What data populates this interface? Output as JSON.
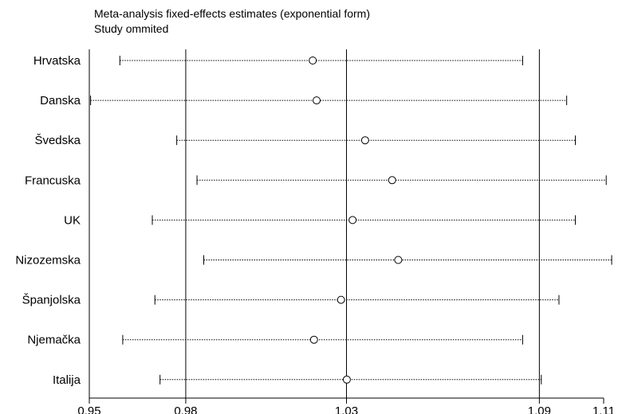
{
  "chart_data": {
    "type": "forest",
    "title": "Meta-analysis fixed-effects estimates (exponential form)",
    "subtitle": "Study ommited",
    "xlabel": "",
    "ylabel": "",
    "xlim": [
      0.95,
      1.11
    ],
    "xticks": [
      0.95,
      0.98,
      1.03,
      1.09,
      1.11
    ],
    "xtick_labels": [
      "0.95",
      "0.98",
      "1.03",
      "1.09",
      "1.11"
    ],
    "reference_lines": [
      0.98,
      1.03,
      1.09
    ],
    "grid": false,
    "studies": [
      {
        "label": "Hrvatska",
        "estimate": 1.0195,
        "lower": 0.9595,
        "upper": 1.0848
      },
      {
        "label": "Danska",
        "estimate": 1.0207,
        "lower": 0.9504,
        "upper": 1.0985
      },
      {
        "label": "Švedska",
        "estimate": 1.0358,
        "lower": 0.9772,
        "upper": 1.1012
      },
      {
        "label": "Francuska",
        "estimate": 1.0442,
        "lower": 0.9835,
        "upper": 1.1108
      },
      {
        "label": "UK",
        "estimate": 1.0319,
        "lower": 0.9696,
        "upper": 1.1012
      },
      {
        "label": "Nizozemska",
        "estimate": 1.0461,
        "lower": 0.9856,
        "upper": 1.1125
      },
      {
        "label": "Španjolska",
        "estimate": 1.0283,
        "lower": 0.9704,
        "upper": 1.0961
      },
      {
        "label": "Njemačka",
        "estimate": 1.0199,
        "lower": 0.9604,
        "upper": 1.0848
      },
      {
        "label": "Italija",
        "estimate": 1.0301,
        "lower": 0.972,
        "upper": 1.0906
      }
    ]
  }
}
